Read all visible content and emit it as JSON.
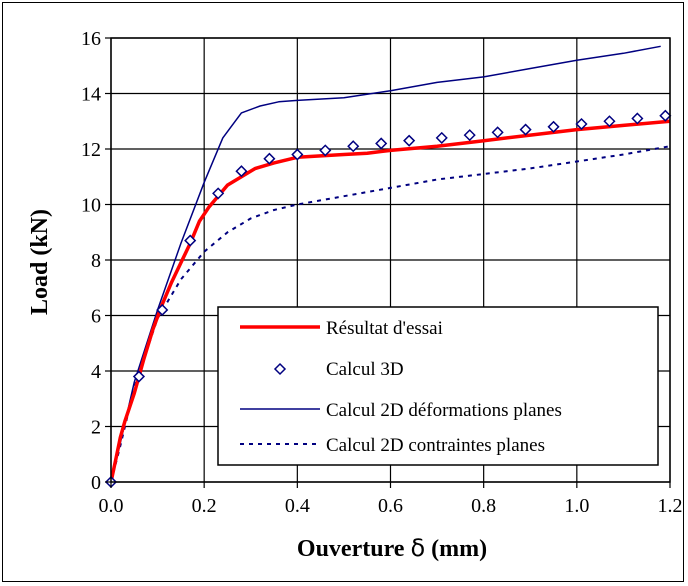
{
  "chart_data": {
    "type": "line",
    "title": "",
    "xlabel": "Ouverture δ (mm)",
    "xlabel_parts": {
      "pre": "Ouverture ",
      "symbol": "δ",
      "post": " (mm)"
    },
    "ylabel": "Load (kN)",
    "xlim": [
      0,
      1.2
    ],
    "ylim": [
      0,
      16
    ],
    "xticks": [
      0,
      0.2,
      0.4,
      0.6,
      0.8,
      1.0,
      1.2
    ],
    "xtick_labels": [
      "0.0",
      "0.2",
      "0.4",
      "0.6",
      "0.8",
      "1.0",
      "1.2"
    ],
    "yticks": [
      0,
      2,
      4,
      6,
      8,
      10,
      12,
      14,
      16
    ],
    "ytick_labels": [
      "0",
      "2",
      "4",
      "6",
      "8",
      "10",
      "12",
      "14",
      "16"
    ],
    "grid": true,
    "legend_position": "bottom-right",
    "series": [
      {
        "name": "Résultat d'essai",
        "style": "line",
        "color": "#ff0000",
        "x": [
          0,
          0.01,
          0.02,
          0.03,
          0.05,
          0.07,
          0.09,
          0.11,
          0.13,
          0.15,
          0.17,
          0.19,
          0.21,
          0.23,
          0.25,
          0.28,
          0.31,
          0.35,
          0.4,
          0.45,
          0.5,
          0.55,
          0.6,
          0.7,
          0.8,
          0.9,
          1.0,
          1.1,
          1.2
        ],
        "y": [
          0,
          0.8,
          1.6,
          2.2,
          3.2,
          4.4,
          5.5,
          6.4,
          7.2,
          7.9,
          8.6,
          9.4,
          9.9,
          10.3,
          10.7,
          11.0,
          11.3,
          11.5,
          11.7,
          11.75,
          11.8,
          11.85,
          11.95,
          12.1,
          12.3,
          12.5,
          12.7,
          12.85,
          13.0
        ]
      },
      {
        "name": "Calcul 3D",
        "style": "markers",
        "color": "#000080",
        "x": [
          0,
          0.06,
          0.11,
          0.17,
          0.23,
          0.28,
          0.34,
          0.4,
          0.46,
          0.52,
          0.58,
          0.64,
          0.71,
          0.77,
          0.83,
          0.89,
          0.95,
          1.01,
          1.07,
          1.13,
          1.19
        ],
        "y": [
          0,
          3.8,
          6.2,
          8.7,
          10.4,
          11.2,
          11.65,
          11.8,
          11.95,
          12.1,
          12.2,
          12.3,
          12.4,
          12.5,
          12.6,
          12.7,
          12.8,
          12.9,
          13.0,
          13.1,
          13.2
        ]
      },
      {
        "name": "Calcul 2D déformations planes",
        "style": "line",
        "color": "#000080",
        "x": [
          0,
          0.02,
          0.05,
          0.1,
          0.15,
          0.2,
          0.24,
          0.28,
          0.32,
          0.36,
          0.4,
          0.5,
          0.6,
          0.7,
          0.8,
          0.9,
          1.0,
          1.1,
          1.18
        ],
        "y": [
          0,
          1.4,
          3.6,
          6.2,
          8.6,
          10.8,
          12.4,
          13.3,
          13.55,
          13.7,
          13.75,
          13.85,
          14.1,
          14.4,
          14.6,
          14.9,
          15.2,
          15.45,
          15.7
        ]
      },
      {
        "name": "Calcul 2D contraintes planes",
        "style": "dashed",
        "color": "#000080",
        "x": [
          0,
          0.02,
          0.05,
          0.1,
          0.15,
          0.2,
          0.25,
          0.3,
          0.35,
          0.4,
          0.5,
          0.6,
          0.7,
          0.8,
          0.9,
          1.0,
          1.1,
          1.2
        ],
        "y": [
          0,
          1.3,
          3.4,
          5.9,
          7.3,
          8.3,
          9.0,
          9.5,
          9.8,
          10.0,
          10.3,
          10.6,
          10.9,
          11.1,
          11.3,
          11.55,
          11.8,
          12.1
        ]
      }
    ]
  }
}
